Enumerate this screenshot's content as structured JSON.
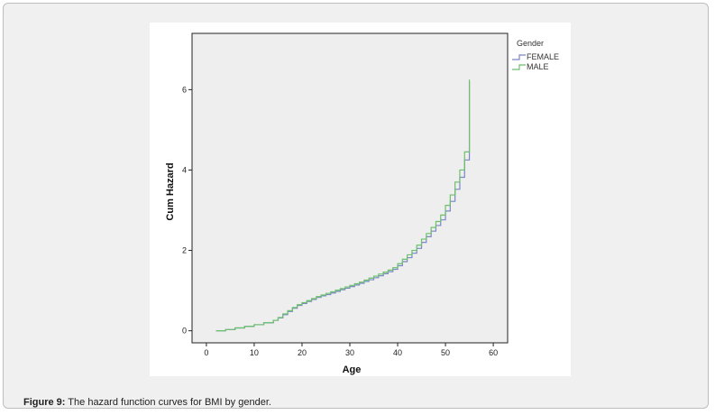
{
  "caption": {
    "label": "Figure 9:",
    "text": " The hazard function curves for BMI by gender."
  },
  "chart_data": {
    "type": "line",
    "step": true,
    "title": "",
    "xlabel": "Age",
    "ylabel": "Cum Hazard",
    "xlim": [
      -3,
      63
    ],
    "ylim": [
      -0.3,
      7.4
    ],
    "xticks": [
      0,
      10,
      20,
      30,
      40,
      50,
      60
    ],
    "yticks": [
      0,
      2,
      4,
      6
    ],
    "plot_background": "#eeeeee",
    "grid": false,
    "legend": {
      "title": "Gender",
      "position": "outside-right-top",
      "entries": [
        "FEMALE",
        "MALE"
      ]
    },
    "series": [
      {
        "name": "FEMALE",
        "color": "#7b86c9",
        "x": [
          2,
          4,
          6,
          8,
          10,
          12,
          14,
          15,
          16,
          17,
          18,
          19,
          20,
          21,
          22,
          23,
          24,
          25,
          26,
          27,
          28,
          29,
          30,
          31,
          32,
          33,
          34,
          35,
          36,
          37,
          38,
          39,
          40,
          41,
          42,
          43,
          44,
          45,
          46,
          47,
          48,
          49,
          50,
          51,
          52,
          53,
          54,
          55
        ],
        "y": [
          0.0,
          0.03,
          0.07,
          0.11,
          0.15,
          0.2,
          0.26,
          0.32,
          0.4,
          0.48,
          0.56,
          0.63,
          0.68,
          0.73,
          0.78,
          0.83,
          0.87,
          0.9,
          0.94,
          0.98,
          1.02,
          1.06,
          1.1,
          1.14,
          1.18,
          1.23,
          1.27,
          1.32,
          1.37,
          1.42,
          1.47,
          1.53,
          1.62,
          1.72,
          1.82,
          1.93,
          2.05,
          2.2,
          2.34,
          2.48,
          2.62,
          2.76,
          2.98,
          3.22,
          3.52,
          3.82,
          4.25,
          6.2
        ]
      },
      {
        "name": "MALE",
        "color": "#6cc06c",
        "x": [
          2,
          4,
          6,
          8,
          10,
          12,
          14,
          15,
          16,
          17,
          18,
          19,
          20,
          21,
          22,
          23,
          24,
          25,
          26,
          27,
          28,
          29,
          30,
          31,
          32,
          33,
          34,
          35,
          36,
          37,
          38,
          39,
          40,
          41,
          42,
          43,
          44,
          45,
          46,
          47,
          48,
          49,
          50,
          51,
          52,
          53,
          54,
          55
        ],
        "y": [
          0.0,
          0.03,
          0.07,
          0.11,
          0.15,
          0.2,
          0.26,
          0.33,
          0.42,
          0.5,
          0.58,
          0.65,
          0.7,
          0.75,
          0.8,
          0.85,
          0.89,
          0.93,
          0.97,
          1.01,
          1.05,
          1.09,
          1.13,
          1.17,
          1.21,
          1.26,
          1.31,
          1.36,
          1.41,
          1.46,
          1.51,
          1.57,
          1.67,
          1.78,
          1.89,
          2.0,
          2.13,
          2.28,
          2.42,
          2.57,
          2.72,
          2.88,
          3.12,
          3.38,
          3.7,
          4.0,
          4.45,
          6.25
        ]
      }
    ]
  }
}
